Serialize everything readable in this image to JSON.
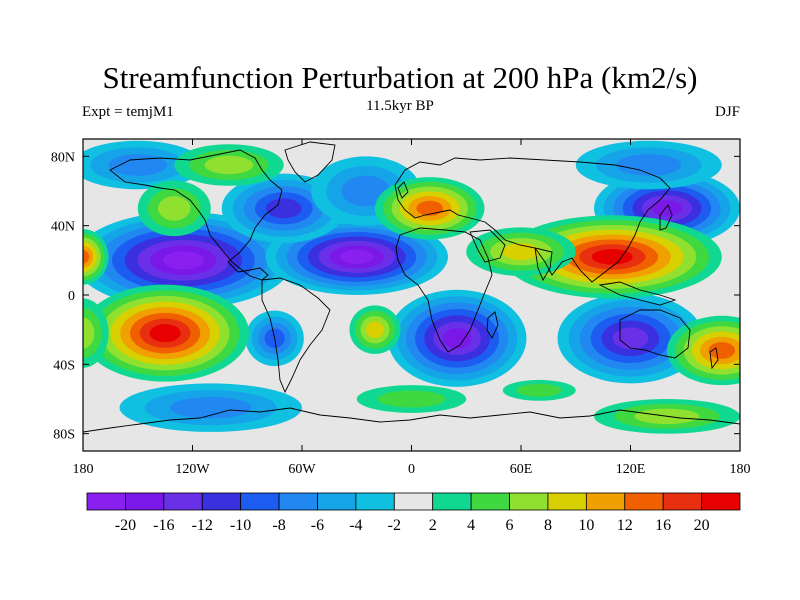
{
  "title": "Streamfunction Perturbation at 200 hPa (km2/s)",
  "left_string": "Expt = temjM1",
  "center_string": "11.5kyr BP",
  "right_string": "DJF",
  "x_ticks": [
    {
      "label": "180",
      "lon": -180
    },
    {
      "label": "120W",
      "lon": -120
    },
    {
      "label": "60W",
      "lon": -60
    },
    {
      "label": "0",
      "lon": 0
    },
    {
      "label": "60E",
      "lon": 60
    },
    {
      "label": "120E",
      "lon": 120
    },
    {
      "label": "180",
      "lon": 180
    }
  ],
  "y_ticks": [
    {
      "label": "80N",
      "lat": 80
    },
    {
      "label": "40N",
      "lat": 40
    },
    {
      "label": "0",
      "lat": 0
    },
    {
      "label": "40S",
      "lat": -40
    },
    {
      "label": "80S",
      "lat": -80
    }
  ],
  "extent": {
    "lon": [
      -180,
      180
    ],
    "lat": [
      -90,
      90
    ]
  },
  "colorbar": {
    "colors": [
      "#8a20f0",
      "#7a18e8",
      "#6a30e8",
      "#3a30e0",
      "#1c5cf0",
      "#2088f0",
      "#16a4e8",
      "#10c0e0",
      "#e6e6e6",
      "#10d890",
      "#40d840",
      "#90e030",
      "#d8d000",
      "#f0a000",
      "#f06000",
      "#e83010",
      "#e80000"
    ],
    "labels": [
      "-20",
      "-16",
      "-12",
      "-10",
      "-8",
      "-6",
      "-4",
      "-2",
      "2",
      "4",
      "6",
      "8",
      "10",
      "12",
      "16",
      "20"
    ]
  },
  "features": [
    {
      "lon": -125,
      "lat": 20,
      "value": -20
    },
    {
      "lon": -30,
      "lat": 22,
      "value": -20
    },
    {
      "lon": 25,
      "lat": -25,
      "value": -16
    },
    {
      "lon": 120,
      "lat": -25,
      "value": -14
    },
    {
      "lon": -70,
      "lat": 50,
      "value": -10
    },
    {
      "lon": 140,
      "lat": 50,
      "value": -16
    },
    {
      "lon": -75,
      "lat": -25,
      "value": -8
    },
    {
      "lon": -25,
      "lat": 60,
      "value": -6
    },
    {
      "lon": 130,
      "lat": 75,
      "value": -6
    },
    {
      "lon": -150,
      "lat": 75,
      "value": -6
    },
    {
      "lon": -110,
      "lat": -65,
      "value": -6
    },
    {
      "lon": 110,
      "lat": 22,
      "value": 22
    },
    {
      "lon": -135,
      "lat": -22,
      "value": 20
    },
    {
      "lon": 10,
      "lat": 50,
      "value": 14
    },
    {
      "lon": -20,
      "lat": -20,
      "value": 8
    },
    {
      "lon": 170,
      "lat": -32,
      "value": 12
    },
    {
      "lon": 60,
      "lat": 25,
      "value": 8
    },
    {
      "lon": -100,
      "lat": 75,
      "value": 6
    },
    {
      "lon": -130,
      "lat": 50,
      "value": 6
    },
    {
      "lon": 140,
      "lat": -70,
      "value": 6
    },
    {
      "lon": 0,
      "lat": -60,
      "value": 4
    },
    {
      "lon": 70,
      "lat": -55,
      "value": 4
    },
    {
      "lon": -180,
      "lat": 22,
      "value": 14
    },
    {
      "lon": -180,
      "lat": -22,
      "value": 6
    }
  ]
}
